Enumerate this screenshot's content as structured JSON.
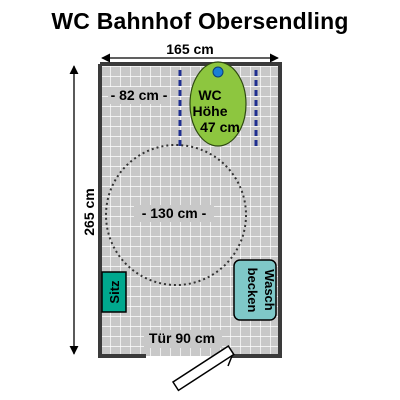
{
  "title": "WC Bahnhof Obersendling",
  "dimensions": {
    "width": "165 cm",
    "height": "265 cm",
    "wc_side_clearance": "- 82 cm -",
    "turning_circle": "- 130 cm -",
    "door": "Tür 90 cm"
  },
  "fixtures": {
    "wc_line1": "WC",
    "wc_line2": "Höhe",
    "wc_line3": "47 cm",
    "seat": "Sitz",
    "sink_line1": "Wasch",
    "sink_line2": "becken"
  },
  "colors": {
    "floor": "#c8c8c8",
    "grid": "#ffffff",
    "wall": "#3a3a3a",
    "wc": "#8dc63f",
    "seat": "#00a88e",
    "sink": "#7fc8c8",
    "grab_bar": "#1f2f8f",
    "flush_button": "#1a7fd6"
  }
}
